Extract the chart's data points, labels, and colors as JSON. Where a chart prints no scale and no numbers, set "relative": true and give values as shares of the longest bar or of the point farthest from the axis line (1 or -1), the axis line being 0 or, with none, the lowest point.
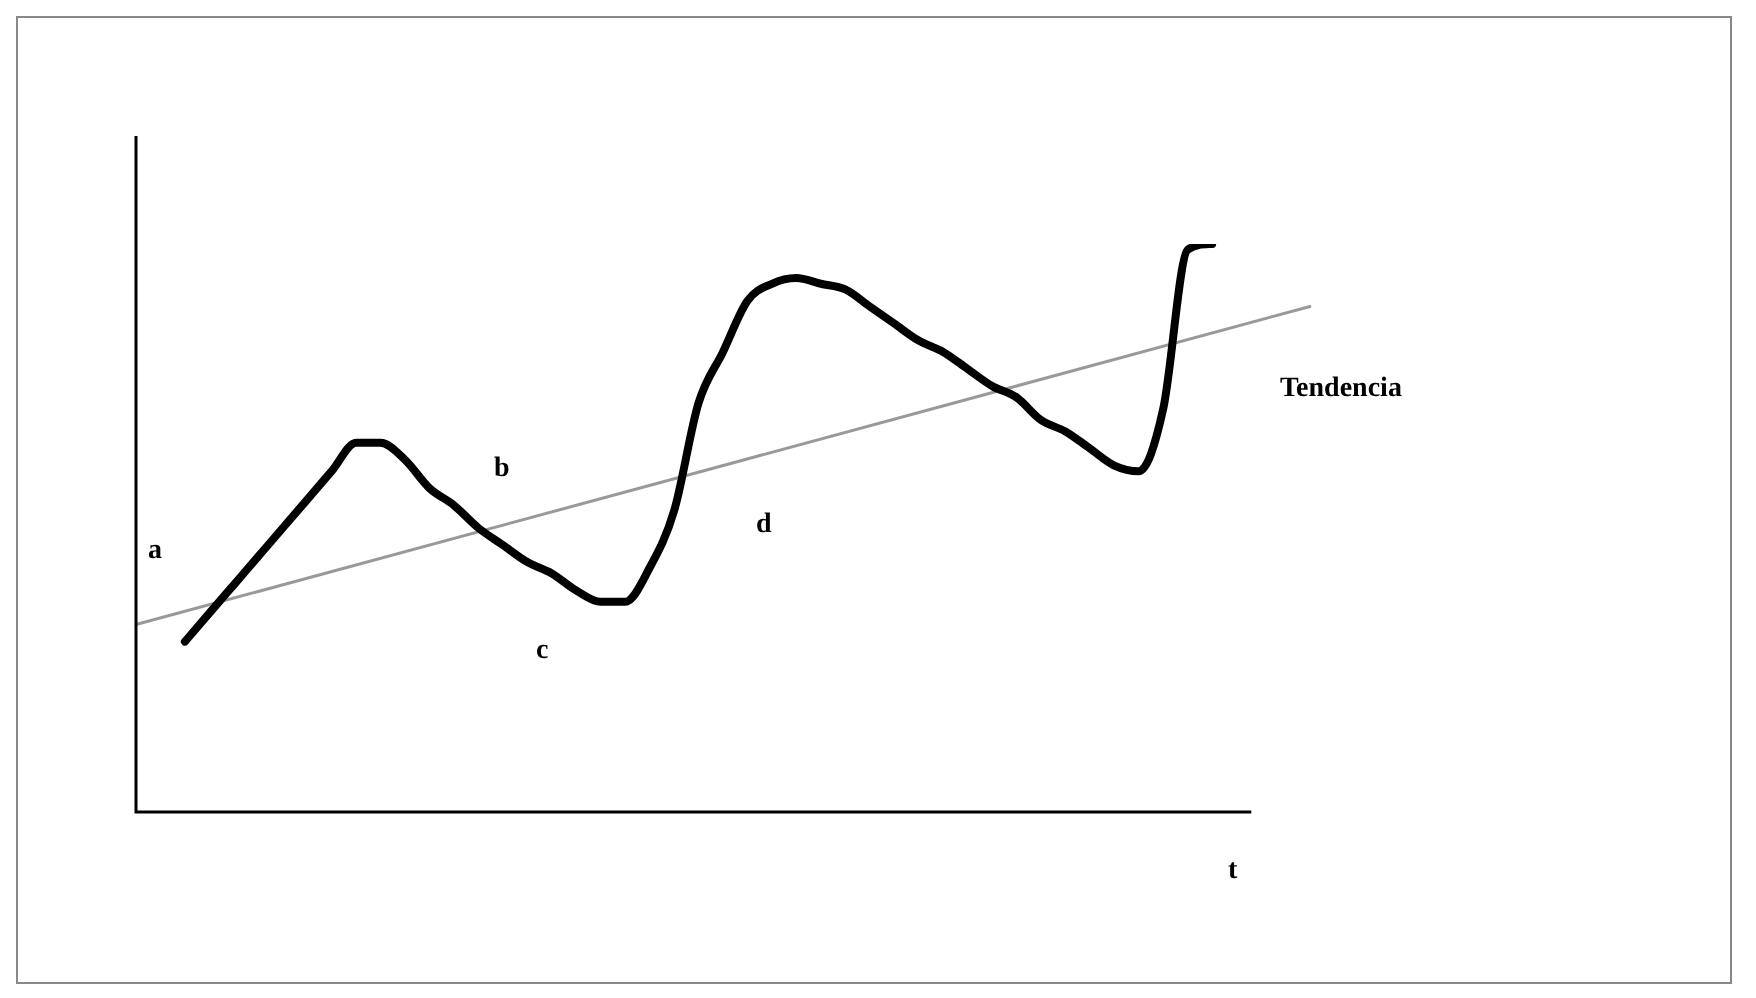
{
  "chart_data": {
    "type": "line",
    "relative": true,
    "xlabel": "t",
    "marker": "none",
    "line_style": "solid",
    "categories": [
      null,
      null,
      null,
      null,
      null,
      null,
      null,
      null,
      null,
      null,
      null,
      null,
      null,
      null,
      null,
      null,
      null,
      null,
      null,
      null,
      null,
      null,
      null,
      null,
      null,
      null,
      null,
      null,
      null,
      null,
      null,
      null,
      null,
      null,
      null,
      null,
      null,
      null,
      null,
      null,
      null,
      null,
      null,
      null,
      null,
      null,
      null,
      null,
      null
    ],
    "series": [
      {
        "color": "#000000",
        "values": [
          null,
          null,
          0.3,
          0.35,
          0.4,
          0.45,
          0.5,
          0.55,
          0.6,
          0.65,
          0.65,
          0.62,
          0.57,
          0.54,
          0.5,
          0.47,
          0.44,
          0.42,
          0.39,
          0.37,
          0.37,
          0.43,
          0.53,
          0.72,
          0.81,
          0.9,
          0.93,
          0.94,
          0.93,
          0.92,
          0.89,
          0.86,
          0.83,
          0.81,
          0.78,
          0.75,
          0.73,
          0.69,
          0.67,
          0.64,
          0.61,
          0.6,
          0.71,
          0.99,
          1,
          null,
          null,
          null,
          null
        ]
      },
      {
        "name": "Tendencia",
        "color": "#999999",
        "values": [
          0.33,
          null,
          null,
          null,
          null,
          null,
          null,
          null,
          null,
          null,
          null,
          null,
          null,
          null,
          null,
          null,
          null,
          null,
          null,
          null,
          null,
          null,
          null,
          null,
          null,
          null,
          null,
          null,
          null,
          null,
          null,
          null,
          null,
          null,
          null,
          null,
          null,
          null,
          null,
          null,
          null,
          null,
          null,
          null,
          null,
          null,
          null,
          null,
          0.89
        ]
      }
    ],
    "annotations": [
      "a",
      "b",
      "c",
      "d"
    ]
  }
}
